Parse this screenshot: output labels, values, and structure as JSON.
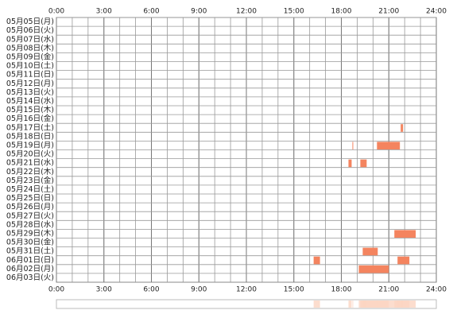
{
  "chart_data": {
    "type": "timeline",
    "categories": [
      "05月05日(月)",
      "05月06日(火)",
      "05月07日(水)",
      "05月08日(木)",
      "05月09日(金)",
      "05月10日(土)",
      "05月11日(日)",
      "05月12日(月)",
      "05月13日(火)",
      "05月14日(水)",
      "05月15日(木)",
      "05月16日(金)",
      "05月17日(土)",
      "05月18日(日)",
      "05月19日(月)",
      "05月20日(火)",
      "05月21日(水)",
      "05月22日(木)",
      "05月23日(金)",
      "05月24日(土)",
      "05月25日(日)",
      "05月26日(月)",
      "05月27日(火)",
      "05月28日(水)",
      "05月29日(木)",
      "05月30日(金)",
      "05月31日(土)",
      "06月01日(日)",
      "06月02日(月)",
      "06月03日(火)"
    ],
    "values": [
      [],
      [],
      [],
      [],
      [],
      [],
      [],
      [],
      [],
      [],
      [],
      [],
      [
        [
          21.75,
          21.9
        ]
      ],
      [],
      [
        [
          18.7,
          18.75
        ],
        [
          20.25,
          21.7
        ]
      ],
      [],
      [
        [
          18.45,
          18.65
        ],
        [
          19.2,
          19.6
        ]
      ],
      [],
      [],
      [],
      [],
      [],
      [],
      [],
      [
        [
          21.35,
          22.7
        ]
      ],
      [],
      [
        [
          19.35,
          20.3
        ]
      ],
      [
        [
          16.25,
          16.65
        ],
        [
          21.55,
          22.3
        ]
      ],
      [
        [
          19.1,
          21.0
        ]
      ],
      []
    ],
    "color": "#f4845f",
    "xlim": [
      0,
      24
    ],
    "xticks": [
      {
        "value": 0,
        "label": "0:00"
      },
      {
        "value": 3,
        "label": "3:00"
      },
      {
        "value": 6,
        "label": "6:00"
      },
      {
        "value": 9,
        "label": "9:00"
      },
      {
        "value": 12,
        "label": "12:00"
      },
      {
        "value": 15,
        "label": "15:00"
      },
      {
        "value": 18,
        "label": "18:00"
      },
      {
        "value": 21,
        "label": "21:00"
      },
      {
        "value": 24,
        "label": "24:00"
      }
    ],
    "xgrid_step": 1,
    "summary_color": "#fbd5c2"
  }
}
